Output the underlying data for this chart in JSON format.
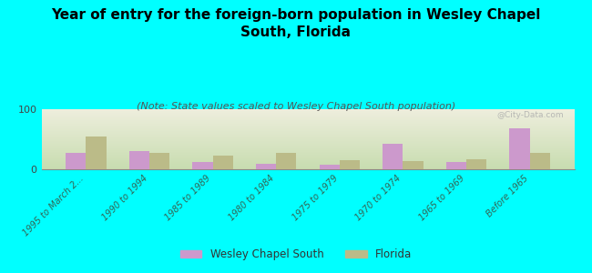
{
  "title": "Year of entry for the foreign-born population in Wesley Chapel\nSouth, Florida",
  "subtitle": "(Note: State values scaled to Wesley Chapel South population)",
  "categories": [
    "1995 to March 2...",
    "1990 to 1994",
    "1985 to 1989",
    "1980 to 1984",
    "1975 to 1979",
    "1970 to 1974",
    "1965 to 1969",
    "Before 1965"
  ],
  "wesley_values": [
    28,
    31,
    12,
    9,
    8,
    42,
    12,
    68
  ],
  "florida_values": [
    55,
    28,
    22,
    27,
    15,
    13,
    17,
    28
  ],
  "bar_color_wesley": "#cc99cc",
  "bar_color_florida": "#bbbb88",
  "background_color": "#00ffff",
  "plot_bg_top": "#c8ddb0",
  "plot_bg_bottom": "#eeeedd",
  "ylim": [
    0,
    100
  ],
  "yticks": [
    0,
    100
  ],
  "title_fontsize": 11,
  "subtitle_fontsize": 8,
  "tick_label_color": "#336655",
  "legend_label_wesley": "Wesley Chapel South",
  "legend_label_florida": "Florida",
  "watermark": "@City-Data.com"
}
